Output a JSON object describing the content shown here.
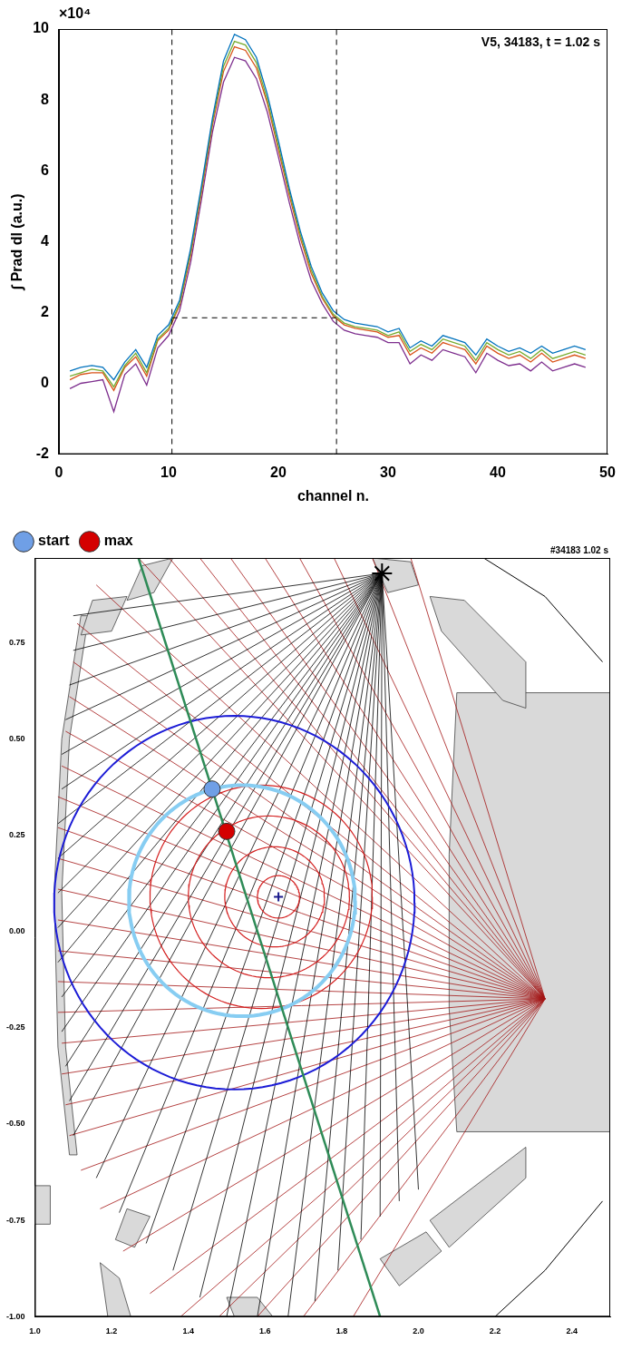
{
  "chart_data": [
    {
      "type": "line",
      "annotation": "V5, 34183, t = 1.02 s",
      "y_multiplier": "×10⁴",
      "xlabel": "channel n.",
      "ylabel": "∫ Prad dl (a.u.)",
      "xlim": [
        0,
        50
      ],
      "xticks": [
        0,
        10,
        20,
        30,
        40,
        50
      ],
      "ylim": [
        -2,
        10
      ],
      "yticks": [
        -2,
        0,
        2,
        4,
        6,
        8,
        10
      ],
      "grid": false,
      "x": [
        1,
        2,
        3,
        4,
        5,
        6,
        7,
        8,
        9,
        10,
        11,
        12,
        13,
        14,
        15,
        16,
        17,
        18,
        19,
        20,
        21,
        22,
        23,
        24,
        25,
        26,
        27,
        28,
        29,
        30,
        31,
        32,
        33,
        34,
        35,
        36,
        37,
        38,
        39,
        40,
        41,
        42,
        43,
        44,
        45,
        46,
        47,
        48
      ],
      "series": [
        {
          "color": "#0072bd",
          "values": [
            0.35,
            0.45,
            0.5,
            0.45,
            0.1,
            0.6,
            0.95,
            0.45,
            1.35,
            1.65,
            2.35,
            3.8,
            5.6,
            7.5,
            9.1,
            9.85,
            9.7,
            9.2,
            8.15,
            6.85,
            5.5,
            4.3,
            3.3,
            2.55,
            2.05,
            1.8,
            1.7,
            1.65,
            1.6,
            1.45,
            1.55,
            1.0,
            1.2,
            1.05,
            1.35,
            1.25,
            1.15,
            0.8,
            1.25,
            1.05,
            0.9,
            1.0,
            0.85,
            1.05,
            0.85,
            0.95,
            1.05,
            0.95
          ]
        },
        {
          "color": "#77ac30",
          "values": [
            0.2,
            0.3,
            0.4,
            0.35,
            -0.1,
            0.5,
            0.85,
            0.3,
            1.25,
            1.55,
            2.25,
            3.7,
            5.5,
            7.4,
            8.95,
            9.65,
            9.55,
            9.05,
            8.0,
            6.7,
            5.4,
            4.2,
            3.2,
            2.45,
            1.95,
            1.7,
            1.6,
            1.55,
            1.5,
            1.35,
            1.45,
            0.9,
            1.1,
            0.95,
            1.25,
            1.15,
            1.05,
            0.65,
            1.15,
            0.95,
            0.8,
            0.9,
            0.7,
            0.95,
            0.7,
            0.8,
            0.9,
            0.8
          ]
        },
        {
          "color": "#d95319",
          "values": [
            0.1,
            0.25,
            0.3,
            0.3,
            -0.2,
            0.45,
            0.75,
            0.2,
            1.2,
            1.5,
            2.2,
            3.6,
            5.4,
            7.3,
            8.8,
            9.5,
            9.4,
            8.9,
            7.9,
            6.6,
            5.3,
            4.1,
            3.1,
            2.4,
            1.9,
            1.65,
            1.55,
            1.5,
            1.45,
            1.3,
            1.35,
            0.8,
            1.0,
            0.85,
            1.15,
            1.05,
            0.95,
            0.55,
            1.05,
            0.85,
            0.7,
            0.8,
            0.6,
            0.85,
            0.6,
            0.7,
            0.8,
            0.7
          ]
        },
        {
          "color": "#7e2f8e",
          "values": [
            -0.15,
            0.0,
            0.05,
            0.1,
            -0.8,
            0.25,
            0.55,
            -0.05,
            1.0,
            1.35,
            2.05,
            3.4,
            5.2,
            7.1,
            8.5,
            9.2,
            9.1,
            8.6,
            7.65,
            6.4,
            5.1,
            3.9,
            2.9,
            2.25,
            1.75,
            1.5,
            1.4,
            1.35,
            1.3,
            1.15,
            1.15,
            0.55,
            0.8,
            0.65,
            0.95,
            0.85,
            0.75,
            0.3,
            0.85,
            0.65,
            0.5,
            0.55,
            0.35,
            0.6,
            0.35,
            0.45,
            0.55,
            0.45
          ]
        }
      ],
      "reference_lines": [
        {
          "color": "#000000",
          "line_style": "dashed",
          "x": [
            10.3,
            10.3
          ],
          "values": [
            -2,
            10
          ]
        },
        {
          "color": "#000000",
          "line_style": "dashed",
          "x": [
            25.3,
            25.3
          ],
          "values": [
            -2,
            10
          ]
        },
        {
          "color": "#000000",
          "line_style": "dashed",
          "x": [
            10.3,
            25.3
          ],
          "values": [
            1.85,
            1.85
          ]
        }
      ]
    },
    {
      "type": "scatter",
      "title": "#34183 1.02 s",
      "xlim": [
        1.0,
        2.5
      ],
      "xticks": [
        {
          "value": 1,
          "label": "1.0"
        },
        {
          "value": 1.2,
          "label": "1.2"
        },
        {
          "value": 1.4,
          "label": "1.4"
        },
        {
          "value": 1.6,
          "label": "1.6"
        },
        {
          "value": 1.8,
          "label": "1.8"
        },
        {
          "value": 2,
          "label": "2.0"
        },
        {
          "value": 2.2,
          "label": "2.2"
        },
        {
          "value": 2.4,
          "label": "2.4"
        }
      ],
      "ylim": [
        -1.0,
        0.97
      ],
      "yticks": [
        {
          "value": -1,
          "label": "-1.00"
        },
        {
          "value": -0.75,
          "label": "-0.75"
        },
        {
          "value": -0.5,
          "label": "-0.50"
        },
        {
          "value": -0.25,
          "label": "-0.25"
        },
        {
          "value": 0,
          "label": "0.00"
        },
        {
          "value": 0.25,
          "label": "0.25"
        },
        {
          "value": 0.5,
          "label": "0.50"
        },
        {
          "value": 0.75,
          "label": "0.75"
        }
      ],
      "grid": false,
      "legend": "top-left",
      "series": [
        {
          "name": "start",
          "color": "#6f9fe6",
          "marker": "circle",
          "x": [
            1.462
          ],
          "values": [
            0.37
          ]
        },
        {
          "name": "max",
          "color": "#d40000",
          "marker": "circle",
          "x": [
            1.5
          ],
          "values": [
            0.26
          ]
        }
      ],
      "line_of_sight": {
        "color": "#2e8b57",
        "x": [
          1.27,
          1.9
        ],
        "values": [
          0.97,
          -1.0
        ]
      },
      "source_marker": {
        "marker": "star",
        "color": "#000000",
        "x": 1.905,
        "y": 0.93
      },
      "axis_marker": {
        "marker": "cross",
        "color": "#1a1a8c",
        "x": 1.635,
        "y": 0.09
      },
      "boundary": {
        "color": "#1c1cd6",
        "center": [
          1.52,
          0.075
        ],
        "radii": [
          0.47,
          0.485
        ]
      },
      "highlight_surface": {
        "color": "#87cdf2",
        "center": [
          1.54,
          0.08
        ],
        "radii": [
          0.295,
          0.3
        ]
      },
      "contours": {
        "color": "#d42020",
        "surfaces": [
          {
            "center": [
              1.635,
              0.09
            ],
            "radii": [
              0.055,
              0.055
            ]
          },
          {
            "center": [
              1.625,
              0.09
            ],
            "radii": [
              0.13,
              0.13
            ]
          },
          {
            "center": [
              1.61,
              0.09
            ],
            "radii": [
              0.21,
              0.21
            ]
          },
          {
            "center": [
              1.59,
              0.09
            ],
            "radii": [
              0.29,
              0.29
            ]
          }
        ]
      },
      "fans": [
        {
          "color": "#000000",
          "origin": [
            1.905,
            0.93
          ],
          "ends": [
            [
              1.1,
              0.82
            ],
            [
              1.1,
              0.73
            ],
            [
              1.09,
              0.64
            ],
            [
              1.08,
              0.55
            ],
            [
              1.07,
              0.46
            ],
            [
              1.07,
              0.37
            ],
            [
              1.06,
              0.28
            ],
            [
              1.06,
              0.19
            ],
            [
              1.06,
              0.1
            ],
            [
              1.06,
              0.01
            ],
            [
              1.06,
              -0.08
            ],
            [
              1.07,
              -0.17
            ],
            [
              1.07,
              -0.26
            ],
            [
              1.08,
              -0.35
            ],
            [
              1.09,
              -0.44
            ],
            [
              1.1,
              -0.53
            ],
            [
              1.16,
              -0.64
            ],
            [
              1.22,
              -0.73
            ],
            [
              1.29,
              -0.81
            ],
            [
              1.36,
              -0.88
            ],
            [
              1.43,
              -0.95
            ],
            [
              1.5,
              -1.0
            ],
            [
              1.58,
              -1.0
            ],
            [
              1.66,
              -1.0
            ],
            [
              1.73,
              -0.96
            ],
            [
              1.79,
              -0.88
            ],
            [
              1.85,
              -0.8
            ],
            [
              1.9,
              -0.74
            ],
            [
              1.95,
              -0.7
            ],
            [
              2.0,
              -0.67
            ]
          ]
        },
        {
          "color": "#a31515",
          "origin": [
            2.33,
            -0.175
          ],
          "ends": [
            [
              1.98,
              0.97
            ],
            [
              1.88,
              0.97
            ],
            [
              1.78,
              0.97
            ],
            [
              1.69,
              0.97
            ],
            [
              1.6,
              0.97
            ],
            [
              1.51,
              0.97
            ],
            [
              1.43,
              0.97
            ],
            [
              1.35,
              0.97
            ],
            [
              1.27,
              0.97
            ],
            [
              1.16,
              0.9
            ],
            [
              1.11,
              0.8
            ],
            [
              1.1,
              0.7
            ],
            [
              1.09,
              0.61
            ],
            [
              1.08,
              0.52
            ],
            [
              1.07,
              0.43
            ],
            [
              1.06,
              0.35
            ],
            [
              1.06,
              0.27
            ],
            [
              1.06,
              0.19
            ],
            [
              1.06,
              0.11
            ],
            [
              1.06,
              0.03
            ],
            [
              1.06,
              -0.05
            ],
            [
              1.06,
              -0.13
            ],
            [
              1.06,
              -0.21
            ],
            [
              1.07,
              -0.29
            ],
            [
              1.07,
              -0.37
            ],
            [
              1.08,
              -0.45
            ],
            [
              1.09,
              -0.53
            ],
            [
              1.12,
              -0.62
            ],
            [
              1.17,
              -0.72
            ],
            [
              1.23,
              -0.83
            ],
            [
              1.3,
              -0.94
            ],
            [
              1.38,
              -1.0
            ],
            [
              1.48,
              -1.0
            ],
            [
              1.58,
              -1.0
            ],
            [
              1.7,
              -1.0
            ],
            [
              1.83,
              -1.0
            ]
          ]
        }
      ],
      "outlines": {
        "color": "#000000",
        "lines": [
          {
            "x": [
              2.17,
              2.33,
              2.48
            ],
            "values": [
              0.97,
              0.87,
              0.7
            ]
          },
          {
            "x": [
              2.48,
              2.33,
              2.2
            ],
            "values": [
              -0.7,
              -0.88,
              -1.0
            ]
          }
        ]
      },
      "structures": {
        "color": "#d9d9d9",
        "polygons": [
          {
            "x": [
              2.1,
              2.5,
              2.5,
              2.1,
              2.08,
              2.08
            ],
            "y": [
              0.62,
              0.62,
              -0.52,
              -0.52,
              -0.2,
              0.2
            ]
          },
          {
            "x": [
              1.14,
              1.12,
              1.07,
              1.05,
              1.06,
              1.09,
              1.11,
              1.08,
              1.07,
              1.09
            ],
            "y": [
              0.82,
              0.82,
              0.5,
              0.1,
              -0.3,
              -0.58,
              -0.58,
              -0.3,
              0.1,
              0.5
            ]
          },
          {
            "x": [
              1.28,
              1.36,
              1.31,
              1.24
            ],
            "y": [
              0.95,
              0.97,
              0.88,
              0.86
            ]
          },
          {
            "x": [
              1.15,
              1.24,
              1.2,
              1.12
            ],
            "y": [
              0.86,
              0.87,
              0.78,
              0.77
            ]
          },
          {
            "x": [
              1.88,
              1.98,
              2.0,
              1.92
            ],
            "y": [
              0.97,
              0.96,
              0.9,
              0.88
            ]
          },
          {
            "x": [
              2.03,
              2.12,
              2.28,
              2.28,
              2.22,
              2.06
            ],
            "y": [
              0.87,
              0.86,
              0.7,
              0.58,
              0.6,
              0.78
            ]
          },
          {
            "x": [
              2.03,
              2.28,
              2.28,
              2.08
            ],
            "y": [
              -0.75,
              -0.56,
              -0.64,
              -0.82
            ]
          },
          {
            "x": [
              1.24,
              1.3,
              1.26,
              1.21
            ],
            "y": [
              -0.72,
              -0.74,
              -0.82,
              -0.8
            ]
          },
          {
            "x": [
              1.17,
              1.22,
              1.25,
              1.19
            ],
            "y": [
              -0.86,
              -0.9,
              -1.0,
              -1.0
            ]
          },
          {
            "x": [
              1.5,
              1.58,
              1.62,
              1.52
            ],
            "y": [
              -0.95,
              -0.95,
              -1.0,
              -1.0
            ]
          },
          {
            "x": [
              1.9,
              2.02,
              2.06,
              1.95
            ],
            "y": [
              -0.85,
              -0.78,
              -0.83,
              -0.92
            ]
          },
          {
            "x": [
              1.0,
              1.04,
              1.04,
              1.0
            ],
            "y": [
              -0.66,
              -0.66,
              -0.76,
              -0.76
            ]
          }
        ]
      }
    }
  ]
}
